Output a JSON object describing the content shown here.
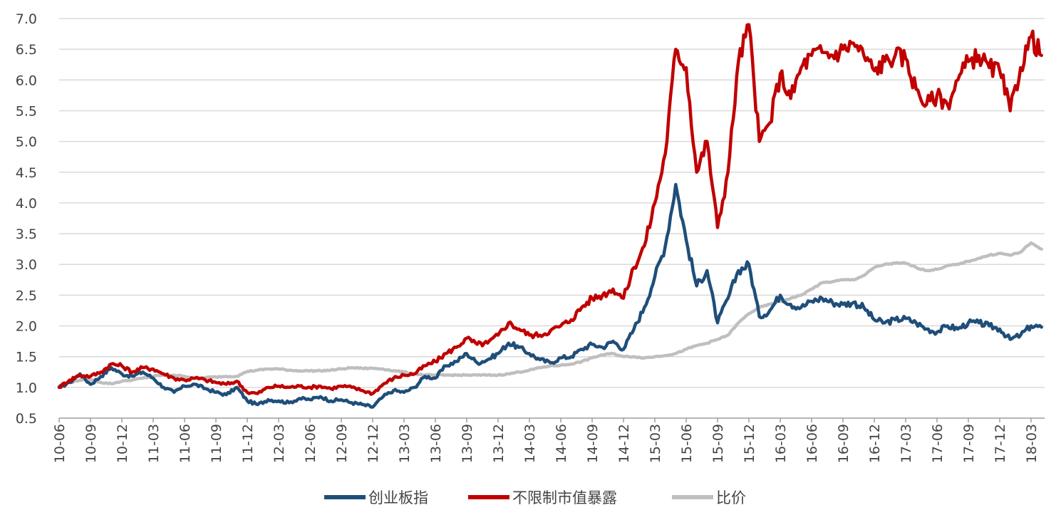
{
  "chart_data": {
    "type": "line",
    "title": "",
    "xlabel": "",
    "ylabel": "",
    "ylim": [
      0.5,
      7.0
    ],
    "y_ticks": [
      "0.5",
      "1.0",
      "1.5",
      "2.0",
      "2.5",
      "3.0",
      "3.5",
      "4.0",
      "4.5",
      "5.0",
      "5.5",
      "6.0",
      "6.5",
      "7.0"
    ],
    "x_ticks": [
      "10-06",
      "10-09",
      "10-12",
      "11-03",
      "11-06",
      "11-09",
      "11-12",
      "12-03",
      "12-06",
      "12-09",
      "12-12",
      "13-03",
      "13-06",
      "13-09",
      "13-12",
      "14-03",
      "14-06",
      "14-09",
      "14-12",
      "15-03",
      "15-06",
      "15-09",
      "15-12",
      "16-03",
      "16-06",
      "16-09",
      "16-12",
      "17-03",
      "17-06",
      "17-09",
      "17-12",
      "18-03"
    ],
    "grid": "horizontal",
    "legend_position": "bottom",
    "series": [
      {
        "name": "创业板指",
        "color": "#1f4e79",
        "points": [
          [
            "10-06",
            1.0
          ],
          [
            "10-07",
            1.08
          ],
          [
            "10-08",
            1.22
          ],
          [
            "10-09",
            1.05
          ],
          [
            "10-10",
            1.18
          ],
          [
            "10-11",
            1.32
          ],
          [
            "10-12",
            1.22
          ],
          [
            "11-01",
            1.18
          ],
          [
            "11-02",
            1.25
          ],
          [
            "11-03",
            1.15
          ],
          [
            "11-04",
            1.0
          ],
          [
            "11-05",
            0.92
          ],
          [
            "11-06",
            1.02
          ],
          [
            "11-07",
            1.05
          ],
          [
            "11-08",
            0.98
          ],
          [
            "11-09",
            0.92
          ],
          [
            "11-10",
            0.88
          ],
          [
            "11-11",
            1.0
          ],
          [
            "11-12",
            0.78
          ],
          [
            "12-01",
            0.72
          ],
          [
            "12-02",
            0.8
          ],
          [
            "12-03",
            0.78
          ],
          [
            "12-04",
            0.75
          ],
          [
            "12-05",
            0.82
          ],
          [
            "12-06",
            0.8
          ],
          [
            "12-07",
            0.85
          ],
          [
            "12-08",
            0.78
          ],
          [
            "12-09",
            0.8
          ],
          [
            "12-10",
            0.75
          ],
          [
            "12-11",
            0.72
          ],
          [
            "12-12",
            0.68
          ],
          [
            "13-01",
            0.85
          ],
          [
            "13-02",
            0.95
          ],
          [
            "13-03",
            0.92
          ],
          [
            "13-04",
            1.0
          ],
          [
            "13-05",
            1.18
          ],
          [
            "13-06",
            1.15
          ],
          [
            "13-07",
            1.35
          ],
          [
            "13-08",
            1.42
          ],
          [
            "13-09",
            1.55
          ],
          [
            "13-10",
            1.4
          ],
          [
            "13-11",
            1.45
          ],
          [
            "13-12",
            1.55
          ],
          [
            "14-01",
            1.72
          ],
          [
            "14-02",
            1.65
          ],
          [
            "14-03",
            1.55
          ],
          [
            "14-04",
            1.45
          ],
          [
            "14-05",
            1.4
          ],
          [
            "14-06",
            1.48
          ],
          [
            "14-07",
            1.5
          ],
          [
            "14-08",
            1.62
          ],
          [
            "14-09",
            1.7
          ],
          [
            "14-10",
            1.65
          ],
          [
            "14-11",
            1.75
          ],
          [
            "14-12",
            1.62
          ],
          [
            "15-01",
            1.95
          ],
          [
            "15-02",
            2.3
          ],
          [
            "15-03",
            2.8
          ],
          [
            "15-04",
            3.3
          ],
          [
            "15-05",
            4.3
          ],
          [
            "15-06",
            3.4
          ],
          [
            "15-07",
            2.65
          ],
          [
            "15-08",
            2.9
          ],
          [
            "15-09",
            2.05
          ],
          [
            "15-10",
            2.45
          ],
          [
            "15-11",
            2.9
          ],
          [
            "15-12",
            3.0
          ],
          [
            "16-01",
            2.15
          ],
          [
            "16-02",
            2.25
          ],
          [
            "16-03",
            2.5
          ],
          [
            "16-04",
            2.35
          ],
          [
            "16-05",
            2.3
          ],
          [
            "16-06",
            2.4
          ],
          [
            "16-07",
            2.45
          ],
          [
            "16-08",
            2.38
          ],
          [
            "16-09",
            2.35
          ],
          [
            "16-10",
            2.38
          ],
          [
            "16-11",
            2.3
          ],
          [
            "16-12",
            2.1
          ],
          [
            "17-01",
            2.05
          ],
          [
            "17-02",
            2.1
          ],
          [
            "17-03",
            2.12
          ],
          [
            "17-04",
            2.05
          ],
          [
            "17-05",
            1.95
          ],
          [
            "17-06",
            1.9
          ],
          [
            "17-07",
            2.0
          ],
          [
            "17-08",
            1.95
          ],
          [
            "17-09",
            2.05
          ],
          [
            "17-10",
            2.05
          ],
          [
            "17-11",
            2.0
          ],
          [
            "17-12",
            1.95
          ],
          [
            "18-01",
            1.78
          ],
          [
            "18-02",
            1.85
          ],
          [
            "18-03",
            2.0
          ],
          [
            "18-04",
            1.98
          ]
        ]
      },
      {
        "name": "不限制市值暴露",
        "color": "#c00000",
        "points": [
          [
            "10-06",
            1.0
          ],
          [
            "10-07",
            1.12
          ],
          [
            "10-08",
            1.2
          ],
          [
            "10-09",
            1.18
          ],
          [
            "10-10",
            1.25
          ],
          [
            "10-11",
            1.38
          ],
          [
            "10-12",
            1.35
          ],
          [
            "11-01",
            1.25
          ],
          [
            "11-02",
            1.32
          ],
          [
            "11-03",
            1.3
          ],
          [
            "11-04",
            1.22
          ],
          [
            "11-05",
            1.15
          ],
          [
            "11-06",
            1.12
          ],
          [
            "11-07",
            1.15
          ],
          [
            "11-08",
            1.12
          ],
          [
            "11-09",
            1.08
          ],
          [
            "11-10",
            1.05
          ],
          [
            "11-11",
            1.1
          ],
          [
            "11-12",
            0.92
          ],
          [
            "12-01",
            0.9
          ],
          [
            "12-02",
            1.0
          ],
          [
            "12-03",
            1.02
          ],
          [
            "12-04",
            1.0
          ],
          [
            "12-05",
            1.02
          ],
          [
            "12-06",
            1.0
          ],
          [
            "12-07",
            1.02
          ],
          [
            "12-08",
            0.98
          ],
          [
            "12-09",
            1.02
          ],
          [
            "12-10",
            1.0
          ],
          [
            "12-11",
            0.95
          ],
          [
            "12-12",
            0.9
          ],
          [
            "13-01",
            1.05
          ],
          [
            "13-02",
            1.15
          ],
          [
            "13-03",
            1.2
          ],
          [
            "13-04",
            1.22
          ],
          [
            "13-05",
            1.35
          ],
          [
            "13-06",
            1.42
          ],
          [
            "13-07",
            1.55
          ],
          [
            "13-08",
            1.65
          ],
          [
            "13-09",
            1.8
          ],
          [
            "13-10",
            1.7
          ],
          [
            "13-11",
            1.72
          ],
          [
            "13-12",
            1.85
          ],
          [
            "14-01",
            2.05
          ],
          [
            "14-02",
            1.95
          ],
          [
            "14-03",
            1.85
          ],
          [
            "14-04",
            1.85
          ],
          [
            "14-05",
            1.92
          ],
          [
            "14-06",
            2.0
          ],
          [
            "14-07",
            2.1
          ],
          [
            "14-08",
            2.3
          ],
          [
            "14-09",
            2.45
          ],
          [
            "14-10",
            2.5
          ],
          [
            "14-11",
            2.6
          ],
          [
            "14-12",
            2.45
          ],
          [
            "15-01",
            2.95
          ],
          [
            "15-02",
            3.3
          ],
          [
            "15-03",
            4.0
          ],
          [
            "15-04",
            4.8
          ],
          [
            "15-05",
            6.5
          ],
          [
            "15-06",
            6.2
          ],
          [
            "15-07",
            4.5
          ],
          [
            "15-08",
            5.0
          ],
          [
            "15-09",
            3.6
          ],
          [
            "15-10",
            4.5
          ],
          [
            "15-11",
            6.3
          ],
          [
            "15-12",
            6.9
          ],
          [
            "16-01",
            5.0
          ],
          [
            "16-02",
            5.3
          ],
          [
            "16-03",
            6.1
          ],
          [
            "16-04",
            5.7
          ],
          [
            "16-05",
            6.2
          ],
          [
            "16-06",
            6.4
          ],
          [
            "16-07",
            6.45
          ],
          [
            "16-08",
            6.4
          ],
          [
            "16-09",
            6.5
          ],
          [
            "16-10",
            6.6
          ],
          [
            "16-11",
            6.4
          ],
          [
            "16-12",
            6.15
          ],
          [
            "17-01",
            6.3
          ],
          [
            "17-02",
            6.4
          ],
          [
            "17-03",
            6.35
          ],
          [
            "17-04",
            5.85
          ],
          [
            "17-05",
            5.6
          ],
          [
            "17-06",
            5.75
          ],
          [
            "17-07",
            5.6
          ],
          [
            "17-08",
            6.0
          ],
          [
            "17-09",
            6.3
          ],
          [
            "17-10",
            6.4
          ],
          [
            "17-11",
            6.2
          ],
          [
            "17-12",
            6.15
          ],
          [
            "18-01",
            5.5
          ],
          [
            "18-02",
            6.2
          ],
          [
            "18-03",
            6.7
          ],
          [
            "18-04",
            6.4
          ]
        ]
      },
      {
        "name": "比价",
        "color": "#bfbfbf",
        "points": [
          [
            "10-06",
            1.02
          ],
          [
            "10-07",
            1.08
          ],
          [
            "10-08",
            1.12
          ],
          [
            "10-09",
            1.13
          ],
          [
            "10-10",
            1.08
          ],
          [
            "10-11",
            1.06
          ],
          [
            "10-12",
            1.1
          ],
          [
            "11-01",
            1.12
          ],
          [
            "11-02",
            1.15
          ],
          [
            "11-03",
            1.18
          ],
          [
            "11-04",
            1.2
          ],
          [
            "11-05",
            1.2
          ],
          [
            "11-06",
            1.18
          ],
          [
            "11-07",
            1.15
          ],
          [
            "11-08",
            1.16
          ],
          [
            "11-09",
            1.17
          ],
          [
            "11-10",
            1.18
          ],
          [
            "11-11",
            1.18
          ],
          [
            "11-12",
            1.26
          ],
          [
            "12-01",
            1.28
          ],
          [
            "12-02",
            1.3
          ],
          [
            "12-03",
            1.3
          ],
          [
            "12-04",
            1.28
          ],
          [
            "12-05",
            1.27
          ],
          [
            "12-06",
            1.27
          ],
          [
            "12-07",
            1.27
          ],
          [
            "12-08",
            1.28
          ],
          [
            "12-09",
            1.3
          ],
          [
            "12-10",
            1.32
          ],
          [
            "12-11",
            1.31
          ],
          [
            "12-12",
            1.31
          ],
          [
            "13-01",
            1.3
          ],
          [
            "13-02",
            1.27
          ],
          [
            "13-03",
            1.25
          ],
          [
            "13-04",
            1.22
          ],
          [
            "13-05",
            1.2
          ],
          [
            "13-06",
            1.2
          ],
          [
            "13-07",
            1.2
          ],
          [
            "13-08",
            1.2
          ],
          [
            "13-09",
            1.2
          ],
          [
            "13-10",
            1.2
          ],
          [
            "13-11",
            1.2
          ],
          [
            "13-12",
            1.2
          ],
          [
            "14-01",
            1.22
          ],
          [
            "14-02",
            1.25
          ],
          [
            "14-03",
            1.28
          ],
          [
            "14-04",
            1.32
          ],
          [
            "14-05",
            1.35
          ],
          [
            "14-06",
            1.36
          ],
          [
            "14-07",
            1.38
          ],
          [
            "14-08",
            1.42
          ],
          [
            "14-09",
            1.48
          ],
          [
            "14-10",
            1.53
          ],
          [
            "14-11",
            1.55
          ],
          [
            "14-12",
            1.5
          ],
          [
            "15-01",
            1.5
          ],
          [
            "15-02",
            1.48
          ],
          [
            "15-03",
            1.5
          ],
          [
            "15-04",
            1.52
          ],
          [
            "15-05",
            1.55
          ],
          [
            "15-06",
            1.62
          ],
          [
            "15-07",
            1.68
          ],
          [
            "15-08",
            1.72
          ],
          [
            "15-09",
            1.78
          ],
          [
            "15-10",
            1.85
          ],
          [
            "15-11",
            2.05
          ],
          [
            "15-12",
            2.2
          ],
          [
            "16-01",
            2.3
          ],
          [
            "16-02",
            2.35
          ],
          [
            "16-03",
            2.4
          ],
          [
            "16-04",
            2.45
          ],
          [
            "16-05",
            2.5
          ],
          [
            "16-06",
            2.6
          ],
          [
            "16-07",
            2.7
          ],
          [
            "16-08",
            2.72
          ],
          [
            "16-09",
            2.75
          ],
          [
            "16-10",
            2.75
          ],
          [
            "16-11",
            2.82
          ],
          [
            "16-12",
            2.95
          ],
          [
            "17-01",
            3.0
          ],
          [
            "17-02",
            3.02
          ],
          [
            "17-03",
            3.02
          ],
          [
            "17-04",
            2.95
          ],
          [
            "17-05",
            2.9
          ],
          [
            "17-06",
            2.92
          ],
          [
            "17-07",
            2.98
          ],
          [
            "17-08",
            3.0
          ],
          [
            "17-09",
            3.05
          ],
          [
            "17-10",
            3.1
          ],
          [
            "17-11",
            3.15
          ],
          [
            "17-12",
            3.18
          ],
          [
            "18-01",
            3.15
          ],
          [
            "18-02",
            3.2
          ],
          [
            "18-03",
            3.35
          ],
          [
            "18-04",
            3.25
          ]
        ]
      }
    ]
  }
}
